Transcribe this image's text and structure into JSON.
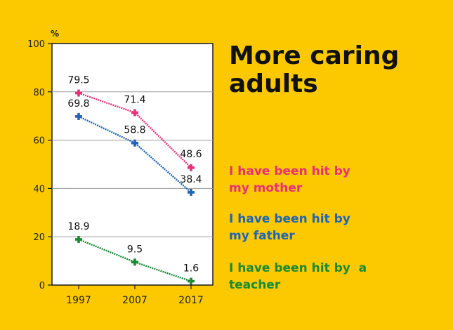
{
  "title_lines": [
    "More caring",
    "adults"
  ],
  "legend": [
    {
      "lines": [
        "I have been hit by",
        "my mother"
      ],
      "color": "#e8307a"
    },
    {
      "lines": [
        "I have been hit by",
        "my father"
      ],
      "color": "#1f64b8"
    },
    {
      "lines": [
        "I have been hit by  a",
        "teacher"
      ],
      "color": "#1a8a32"
    }
  ],
  "chart_data": {
    "type": "line",
    "title": "More caring adults",
    "xlabel": "",
    "ylabel": "%",
    "x": [
      "1997",
      "2007",
      "2017"
    ],
    "ylim": [
      0,
      100
    ],
    "yticks": [
      "0",
      "20",
      "40",
      "60",
      "80",
      "100"
    ],
    "grid": true,
    "series": [
      {
        "name": "I have been hit by my mother",
        "values": [
          79.5,
          71.4,
          48.6
        ],
        "labels": [
          "79.5",
          "71.4",
          "48.6"
        ],
        "color": "#e8307a"
      },
      {
        "name": "I have been hit by my father",
        "values": [
          69.8,
          58.8,
          38.4
        ],
        "labels": [
          "69.8",
          "58.8",
          "38.4"
        ],
        "color": "#1f64b8"
      },
      {
        "name": "I have been hit by  a teacher",
        "values": [
          18.9,
          9.5,
          1.6
        ],
        "labels": [
          "18.9",
          "9.5",
          "1.6"
        ],
        "color": "#1a8a32"
      }
    ]
  }
}
